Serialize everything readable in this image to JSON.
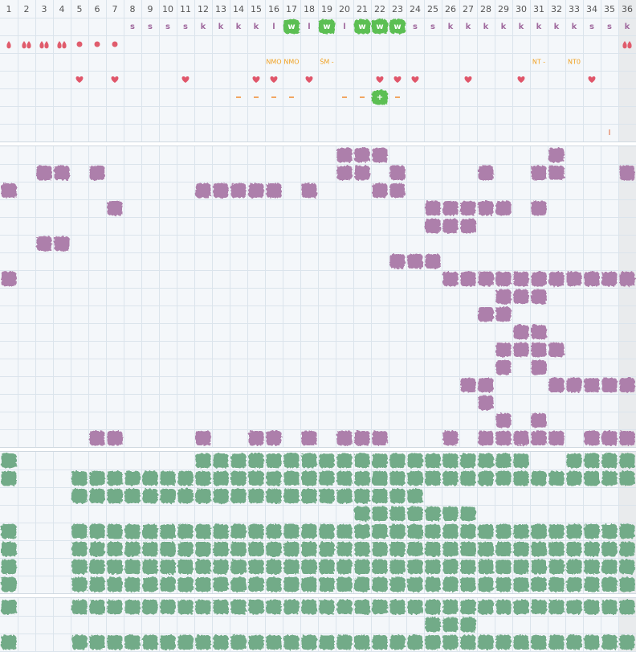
{
  "header": {
    "days": [
      1,
      2,
      3,
      4,
      5,
      6,
      7,
      8,
      9,
      10,
      11,
      12,
      13,
      14,
      15,
      16,
      17,
      18,
      19,
      20,
      21,
      22,
      23,
      24,
      25,
      26,
      27,
      28,
      29,
      30,
      31,
      32,
      33,
      34,
      35,
      36
    ]
  },
  "top": {
    "letters": [
      {
        "day": 8,
        "text": "s"
      },
      {
        "day": 9,
        "text": "s"
      },
      {
        "day": 10,
        "text": "s"
      },
      {
        "day": 11,
        "text": "s"
      },
      {
        "day": 12,
        "text": "k"
      },
      {
        "day": 13,
        "text": "k"
      },
      {
        "day": 14,
        "text": "k"
      },
      {
        "day": 15,
        "text": "k"
      },
      {
        "day": 16,
        "text": "l"
      },
      {
        "day": 17,
        "text": "w",
        "badge": true
      },
      {
        "day": 18,
        "text": "l"
      },
      {
        "day": 19,
        "text": "w",
        "badge": true
      },
      {
        "day": 20,
        "text": "l"
      },
      {
        "day": 21,
        "text": "w",
        "badge": true
      },
      {
        "day": 22,
        "text": "w",
        "badge": true
      },
      {
        "day": 23,
        "text": "w",
        "badge": true
      },
      {
        "day": 24,
        "text": "s"
      },
      {
        "day": 25,
        "text": "s"
      },
      {
        "day": 26,
        "text": "k"
      },
      {
        "day": 27,
        "text": "k"
      },
      {
        "day": 28,
        "text": "k"
      },
      {
        "day": 29,
        "text": "k"
      },
      {
        "day": 30,
        "text": "k"
      },
      {
        "day": 31,
        "text": "k"
      },
      {
        "day": 32,
        "text": "k"
      },
      {
        "day": 33,
        "text": "k"
      },
      {
        "day": 34,
        "text": "s"
      },
      {
        "day": 35,
        "text": "s"
      },
      {
        "day": 36,
        "text": "k"
      }
    ],
    "drops": [
      {
        "day": 1,
        "count": 1
      },
      {
        "day": 2,
        "count": 2
      },
      {
        "day": 3,
        "count": 2
      },
      {
        "day": 4,
        "count": 2
      },
      {
        "day": 36,
        "count": 2
      }
    ],
    "dots": [
      5,
      6,
      7
    ],
    "labels": [
      {
        "day": 16,
        "text": "NMO"
      },
      {
        "day": 17,
        "text": "NMO"
      },
      {
        "day": 19,
        "text": "ŚM -"
      },
      {
        "day": 31,
        "text": "NT -"
      },
      {
        "day": 33,
        "text": "NT0"
      }
    ],
    "hearts": [
      5,
      7,
      11,
      15,
      16,
      18,
      22,
      23,
      24,
      27,
      30,
      34
    ],
    "dashes": [
      14,
      15,
      16,
      17,
      20,
      21,
      23
    ],
    "plus": {
      "day": 22,
      "text": "+"
    },
    "marker": {
      "day": 35,
      "text": "I"
    }
  },
  "purple_rows": [
    [
      20,
      21,
      22,
      32
    ],
    [
      3,
      4,
      6,
      20,
      21,
      23,
      28,
      31,
      32,
      36
    ],
    [
      1,
      12,
      13,
      14,
      15,
      16,
      18,
      22,
      23
    ],
    [
      7,
      25,
      26,
      27,
      28,
      29,
      31
    ],
    [
      25,
      26,
      27
    ],
    [
      3,
      4
    ],
    [
      23,
      24,
      25
    ],
    [
      1,
      26,
      27,
      28,
      29,
      30,
      31,
      32,
      33,
      34,
      35,
      36
    ],
    [
      29,
      30,
      31
    ],
    [
      28,
      29
    ],
    [
      30,
      31
    ],
    [
      29,
      30,
      31,
      32
    ],
    [
      29,
      31
    ],
    [
      27,
      28,
      32,
      33,
      34,
      35,
      36
    ],
    [
      28
    ],
    [
      29,
      31
    ],
    [
      6,
      7,
      12,
      15,
      16,
      18,
      20,
      21,
      22,
      26,
      28,
      29,
      30,
      31,
      32,
      34,
      35,
      36
    ]
  ],
  "green_rows": [
    [
      1,
      12,
      13,
      14,
      15,
      16,
      17,
      18,
      19,
      20,
      21,
      22,
      23,
      24,
      25,
      26,
      27,
      28,
      29,
      30,
      33,
      34,
      35,
      36
    ],
    [
      1,
      5,
      6,
      7,
      8,
      9,
      10,
      11,
      12,
      13,
      14,
      15,
      16,
      17,
      18,
      19,
      20,
      21,
      22,
      23,
      24,
      25,
      26,
      27,
      28,
      29,
      30,
      31,
      32,
      33,
      34,
      35,
      36
    ],
    [
      5,
      6,
      7,
      8,
      9,
      10,
      11,
      12,
      13,
      14,
      15,
      16,
      17,
      18,
      19,
      20,
      21,
      22,
      23,
      24
    ],
    [
      21,
      22,
      23,
      24,
      25,
      26,
      27
    ],
    [
      1,
      5,
      6,
      7,
      8,
      9,
      10,
      11,
      12,
      13,
      14,
      15,
      16,
      17,
      18,
      19,
      20,
      21,
      22,
      23,
      24,
      25,
      26,
      27,
      28,
      29,
      30,
      31,
      32,
      33,
      34,
      35,
      36
    ],
    [
      1,
      5,
      6,
      7,
      8,
      9,
      10,
      11,
      12,
      13,
      14,
      15,
      16,
      17,
      18,
      19,
      20,
      21,
      22,
      23,
      24,
      25,
      26,
      27,
      28,
      29,
      30,
      31,
      32,
      33,
      34,
      35,
      36
    ],
    [
      1,
      5,
      6,
      7,
      8,
      9,
      10,
      11,
      12,
      13,
      14,
      15,
      16,
      17,
      18,
      19,
      20,
      21,
      22,
      23,
      24,
      25,
      26,
      27,
      28,
      29,
      30,
      31,
      32,
      33,
      34,
      35,
      36
    ],
    [
      1,
      5,
      6,
      7,
      8,
      9,
      10,
      11,
      12,
      13,
      14,
      15,
      16,
      17,
      18,
      19,
      20,
      21,
      22,
      23,
      24,
      25,
      26,
      27,
      28,
      29,
      30,
      31,
      32,
      33,
      34,
      35,
      36
    ]
  ],
  "green_rows_2": [
    [
      1,
      5,
      6,
      7,
      8,
      9,
      10,
      11,
      12,
      13,
      14,
      15,
      16,
      17,
      18,
      19,
      20,
      21,
      22,
      23,
      24,
      25,
      26,
      27,
      28,
      29,
      30,
      31,
      32,
      33,
      34,
      35,
      36
    ],
    [
      25,
      26,
      27
    ],
    [
      1,
      5,
      6,
      7,
      8,
      9,
      10,
      11,
      12,
      13,
      14,
      15,
      16,
      17,
      18,
      19,
      20,
      21,
      22,
      23,
      24,
      25,
      26,
      27,
      28,
      29,
      30,
      31,
      32,
      33,
      34,
      35,
      36
    ]
  ]
}
